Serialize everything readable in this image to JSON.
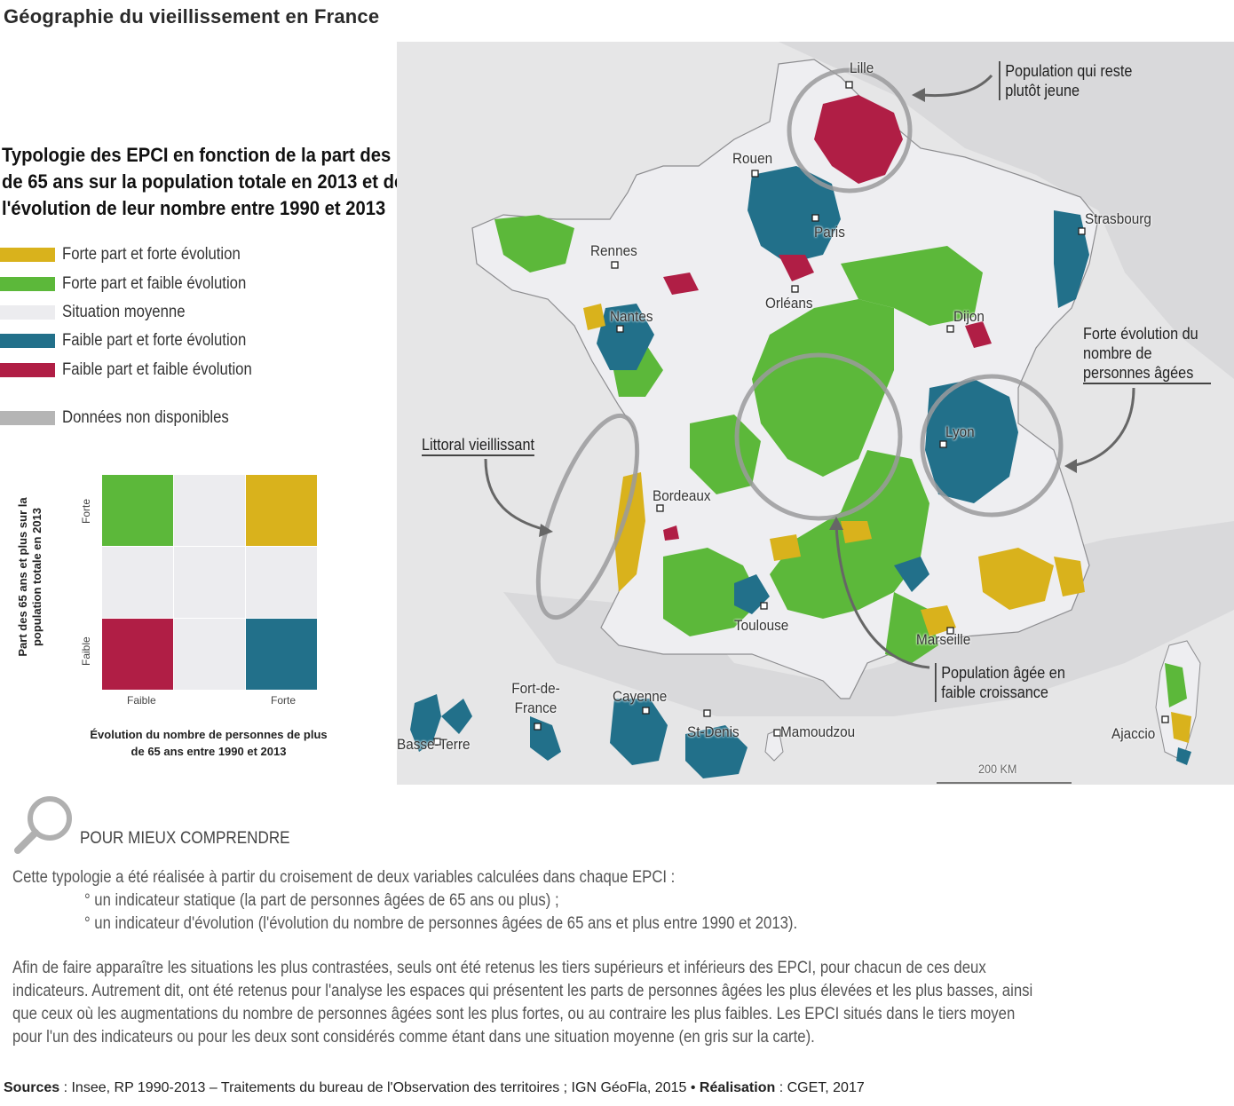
{
  "page_title": "Géographie du vieillissement en France",
  "typology_title": "Typologie des EPCI en fonction de la part des plus de 65 ans sur la population totale en 2013 et de l'évolution de leur nombre entre 1990 et 2013",
  "legend": [
    {
      "label": "Forte part et forte évolution",
      "color": "#d9b21c"
    },
    {
      "label": "Forte part et faible évolution",
      "color": "#5cb83a"
    },
    {
      "label": "Situation moyenne",
      "color": "#ececef"
    },
    {
      "label": "Faible part et forte évolution",
      "color": "#22708a"
    },
    {
      "label": "Faible part et faible évolution",
      "color": "#b01e45"
    },
    {
      "label": "Données non disponibles",
      "color": "#b5b5b5"
    }
  ],
  "matrix": {
    "y_title": "Part des 65 ans et plus sur la population totale en 2013",
    "x_title": "Évolution du nombre de personnes de plus de 65 ans entre 1990 et 2013",
    "y_high": "Forte",
    "y_low": "Faible",
    "x_low": "Faible",
    "x_high": "Forte"
  },
  "map": {
    "cities": [
      "Lille",
      "Rouen",
      "Paris",
      "Strasbourg",
      "Rennes",
      "Orléans",
      "Nantes",
      "Dijon",
      "Lyon",
      "Bordeaux",
      "Toulouse",
      "Marseille",
      "Ajaccio"
    ],
    "overseas": [
      "Basse-Terre",
      "Fort-de-France",
      "Cayenne",
      "St-Denis",
      "Mamoudzou"
    ],
    "annotations": {
      "young": "Population qui reste plutôt jeune",
      "coast": "Littoral vieillissant",
      "strong": "Forte évolution du nombre de personnes âgées",
      "weak": "Population âgée en faible croissance"
    },
    "scale": "200 KM"
  },
  "understand": {
    "heading": "POUR MIEUX COMPRENDRE",
    "intro": "Cette typologie a été réalisée à partir du croisement de deux variables calculées dans chaque EPCI :",
    "bullet1": "° un indicateur statique (la part de personnes âgées de 65 ans ou plus) ;",
    "bullet2": "° un indicateur d'évolution (l'évolution du nombre de personnes âgées de 65 ans et plus entre 1990 et 2013).",
    "line1": "Afin de faire apparaître les situations les plus contrastées, seuls ont été retenus les tiers supérieurs et inférieurs des EPCI, pour chacun de ces deux",
    "line2": "indicateurs. Autrement dit, ont été retenus pour l'analyse les espaces qui présentent les parts de personnes âgées les plus élevées et les plus basses, ainsi",
    "line3": "que ceux où les augmentations du nombre de personnes âgées sont les plus fortes, ou au contraire les plus faibles. Les EPCI situés dans le tiers moyen",
    "line4": "pour l'un des indicateurs ou pour les deux sont considérés comme étant dans une situation moyenne (en gris sur la carte)."
  },
  "sources": {
    "sources_label": "Sources",
    "sources_text": " : Insee, RP 1990-2013 – Traitements du bureau de l'Observation des territoires ; IGN GéoFla, 2015 • ",
    "realisation_label": "Réalisation",
    "realisation_text": " : CGET, 2017"
  }
}
